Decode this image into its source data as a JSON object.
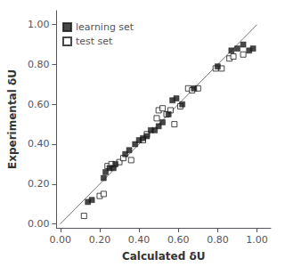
{
  "chart_data": {
    "type": "scatter",
    "xlabel": "Calculated δU",
    "ylabel": "Experimental δU",
    "xlim": [
      -0.02,
      1.07
    ],
    "ylim": [
      -0.02,
      1.07
    ],
    "xticks": [
      {
        "value": 0.0,
        "label": "0.00"
      },
      {
        "value": 0.2,
        "label": "0.20"
      },
      {
        "value": 0.4,
        "label": "0.40"
      },
      {
        "value": 0.6,
        "label": "0.60"
      },
      {
        "value": 0.8,
        "label": "0.80"
      },
      {
        "value": 1.0,
        "label": "1.00"
      }
    ],
    "yticks": [
      {
        "value": 0.0,
        "label": "0.00"
      },
      {
        "value": 0.2,
        "label": "0.20"
      },
      {
        "value": 0.4,
        "label": "0.40"
      },
      {
        "value": 0.6,
        "label": "0.60"
      },
      {
        "value": 0.8,
        "label": "0.80"
      },
      {
        "value": 1.0,
        "label": "1.00"
      }
    ],
    "grid": false,
    "legend": "upper left",
    "series": [
      {
        "type": "line",
        "color": "#777777",
        "values": [
          [
            0.0,
            0.0
          ],
          [
            1.0,
            1.0
          ]
        ]
      },
      {
        "name": "learning set",
        "type": "scatter",
        "marker": "square",
        "color": "#1a1a1a",
        "values": [
          [
            0.14,
            0.11
          ],
          [
            0.16,
            0.12
          ],
          [
            0.22,
            0.23
          ],
          [
            0.23,
            0.26
          ],
          [
            0.25,
            0.28
          ],
          [
            0.27,
            0.28
          ],
          [
            0.28,
            0.3
          ],
          [
            0.33,
            0.35
          ],
          [
            0.35,
            0.37
          ],
          [
            0.38,
            0.4
          ],
          [
            0.4,
            0.42
          ],
          [
            0.42,
            0.43
          ],
          [
            0.44,
            0.44
          ],
          [
            0.46,
            0.47
          ],
          [
            0.48,
            0.47
          ],
          [
            0.5,
            0.49
          ],
          [
            0.52,
            0.51
          ],
          [
            0.55,
            0.55
          ],
          [
            0.57,
            0.62
          ],
          [
            0.59,
            0.63
          ],
          [
            0.62,
            0.6
          ],
          [
            0.68,
            0.68
          ],
          [
            0.8,
            0.79
          ],
          [
            0.87,
            0.87
          ],
          [
            0.9,
            0.88
          ],
          [
            0.93,
            0.9
          ],
          [
            0.96,
            0.87
          ],
          [
            0.98,
            0.88
          ]
        ]
      },
      {
        "name": "test set",
        "type": "scatter",
        "marker": "open_square",
        "color": "#1a1a1a",
        "values": [
          [
            0.12,
            0.04
          ],
          [
            0.2,
            0.14
          ],
          [
            0.22,
            0.15
          ],
          [
            0.24,
            0.29
          ],
          [
            0.26,
            0.3
          ],
          [
            0.3,
            0.31
          ],
          [
            0.32,
            0.33
          ],
          [
            0.36,
            0.32
          ],
          [
            0.42,
            0.42
          ],
          [
            0.44,
            0.45
          ],
          [
            0.49,
            0.53
          ],
          [
            0.5,
            0.57
          ],
          [
            0.52,
            0.58
          ],
          [
            0.54,
            0.55
          ],
          [
            0.56,
            0.57
          ],
          [
            0.58,
            0.5
          ],
          [
            0.61,
            0.59
          ],
          [
            0.65,
            0.68
          ],
          [
            0.67,
            0.67
          ],
          [
            0.7,
            0.68
          ],
          [
            0.79,
            0.78
          ],
          [
            0.82,
            0.78
          ],
          [
            0.86,
            0.83
          ],
          [
            0.88,
            0.84
          ],
          [
            0.93,
            0.85
          ]
        ]
      }
    ]
  }
}
